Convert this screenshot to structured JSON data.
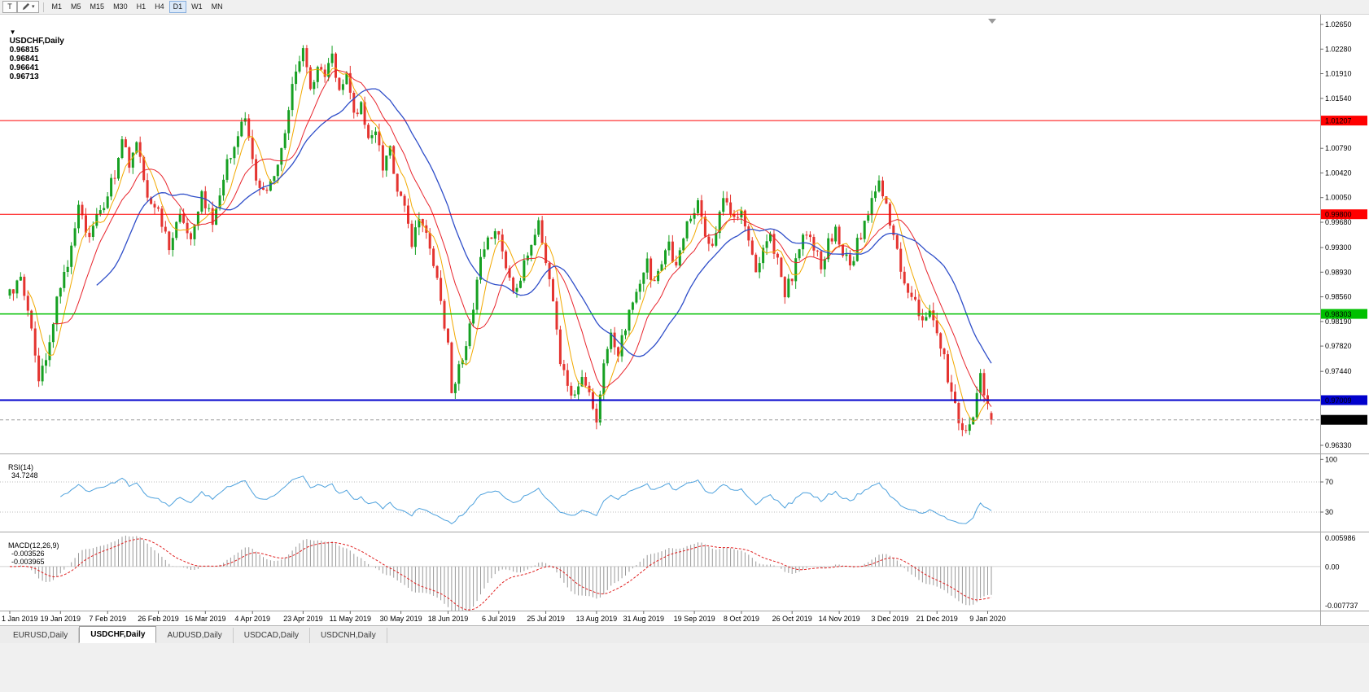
{
  "toolbar": {
    "tool_button": "T",
    "draw_caret": "▾",
    "timeframes": [
      "M1",
      "M5",
      "M15",
      "M30",
      "H1",
      "H4",
      "D1",
      "W1",
      "MN"
    ],
    "active_timeframe": "D1"
  },
  "main_chart": {
    "header": {
      "menu_marker": "▼",
      "symbol": "USDCHF,Daily",
      "open": "0.96815",
      "high": "0.96841",
      "low": "0.96641",
      "close": "0.96713"
    },
    "price_axis_labels": [
      "1.02650",
      "1.02280",
      "1.01910",
      "1.01540",
      "1.00790",
      "1.00420",
      "1.00050",
      "0.99680",
      "0.99300",
      "0.98930",
      "0.98560",
      "0.98190",
      "0.97820",
      "0.97440",
      "0.96330"
    ],
    "hlines": [
      {
        "price": 1.01207,
        "label": "1.01207",
        "color": "#FF0000",
        "width": 1
      },
      {
        "price": 0.998,
        "label": "0.99800",
        "color": "#FF0000",
        "width": 1
      },
      {
        "price": 0.98303,
        "label": "0.98303",
        "color": "#00C000",
        "width": 1.5
      },
      {
        "price": 0.97009,
        "label": "0.97009",
        "color": "#0000CC",
        "width": 2
      }
    ],
    "current_price": {
      "value": 0.96713,
      "label": "0.96713",
      "badge_bg": "#000000",
      "badge_fg": "#FFFFFF"
    }
  },
  "rsi_panel": {
    "header_label": "RSI(14)",
    "header_value": "34.7248",
    "axis_labels": [
      "100",
      "70",
      "30"
    ],
    "axis_values": [
      100,
      70,
      30
    ],
    "level_lines": [
      70,
      30
    ],
    "line_color": "#4DA1DD"
  },
  "macd_panel": {
    "header_label": "MACD(12,26,9)",
    "header_value": "-0.003526",
    "header_signal": "-0.003965",
    "axis_labels": [
      "0.005986",
      "0.00",
      "-0.007737"
    ],
    "axis_max": 0.005986,
    "axis_min": -0.007737,
    "hist_color": "#999999",
    "signal_color": "#E02020"
  },
  "date_axis": {
    "labels": [
      "1 Jan 2019",
      "19 Jan 2019",
      "7 Feb 2019",
      "26 Feb 2019",
      "16 Mar 2019",
      "4 Apr 2019",
      "23 Apr 2019",
      "11 May 2019",
      "30 May 2019",
      "18 Jun 2019",
      "6 Jul 2019",
      "25 Jul 2019",
      "13 Aug 2019",
      "31 Aug 2019",
      "19 Sep 2019",
      "8 Oct 2019",
      "26 Oct 2019",
      "14 Nov 2019",
      "3 Dec 2019",
      "21 Dec 2019",
      "9 Jan 2020"
    ],
    "indices": [
      0,
      14,
      27,
      41,
      54,
      67,
      81,
      94,
      108,
      121,
      135,
      148,
      162,
      175,
      189,
      202,
      216,
      229,
      243,
      256,
      270
    ]
  },
  "tabs": [
    {
      "label": "EURUSD,Daily",
      "active": false
    },
    {
      "label": "USDCHF,Daily",
      "active": true
    },
    {
      "label": "AUDUSD,Daily",
      "active": false
    },
    {
      "label": "USDCAD,Daily",
      "active": false
    },
    {
      "label": "USDCNH,Daily",
      "active": false
    }
  ],
  "chart_data": {
    "type": "candlestick",
    "symbol": "USDCHF",
    "timeframe": "Daily",
    "x_range": [
      "1 Jan 2019",
      "9 Jan 2020"
    ],
    "price_range": [
      0.9622,
      1.02748
    ],
    "num_candles": 272,
    "ohlc_current": {
      "open": 0.96815,
      "high": 0.96841,
      "low": 0.96641,
      "close": 0.96713
    },
    "horizontal_levels": [
      1.01207,
      0.998,
      0.98303,
      0.97009
    ],
    "up_color": "#16A022",
    "down_color": "#E43430",
    "moving_averages": [
      {
        "period": 6,
        "color": "#F2A900",
        "name": "fast-ma"
      },
      {
        "period": 13,
        "color": "#E8242C",
        "name": "mid-ma"
      },
      {
        "period": 25,
        "color": "#2F4EC9",
        "name": "slow-ma"
      }
    ],
    "indicators": {
      "rsi": {
        "period": 14,
        "current": 34.7248
      },
      "macd": {
        "fast": 12,
        "slow": 26,
        "signal": 9,
        "current": -0.003526,
        "signal_current": -0.003965
      }
    },
    "price_anchors": [
      [
        0,
        0.9858
      ],
      [
        3,
        0.9895
      ],
      [
        6,
        0.98
      ],
      [
        8,
        0.9725
      ],
      [
        10,
        0.977
      ],
      [
        13,
        0.985
      ],
      [
        16,
        0.9905
      ],
      [
        19,
        0.9985
      ],
      [
        22,
        0.995
      ],
      [
        26,
        0.9995
      ],
      [
        29,
        1.004
      ],
      [
        31,
        1.0095
      ],
      [
        33,
        1.005
      ],
      [
        35,
        1.0085
      ],
      [
        38,
        1.0
      ],
      [
        41,
        0.999
      ],
      [
        44,
        0.9928
      ],
      [
        47,
        0.9975
      ],
      [
        50,
        0.995
      ],
      [
        53,
        1.001
      ],
      [
        56,
        0.9965
      ],
      [
        59,
        1.004
      ],
      [
        62,
        1.009
      ],
      [
        65,
        1.0125
      ],
      [
        67,
        1.006
      ],
      [
        69,
        1.001
      ],
      [
        71,
        1.0025
      ],
      [
        73,
        1.004
      ],
      [
        75,
        1.008
      ],
      [
        77,
        1.014
      ],
      [
        79,
        1.0195
      ],
      [
        81,
        1.0222
      ],
      [
        83,
        1.017
      ],
      [
        85,
        1.0205
      ],
      [
        87,
        1.018
      ],
      [
        89,
        1.0215
      ],
      [
        91,
        1.016
      ],
      [
        93,
        1.019
      ],
      [
        95,
        1.013
      ],
      [
        97,
        1.015
      ],
      [
        99,
        1.009
      ],
      [
        101,
        1.011
      ],
      [
        103,
        1.005
      ],
      [
        105,
        1.0075
      ],
      [
        107,
        1.002
      ],
      [
        109,
        0.9985
      ],
      [
        111,
        0.994
      ],
      [
        113,
        0.9975
      ],
      [
        115,
        0.9945
      ],
      [
        117,
        0.9905
      ],
      [
        119,
        0.9855
      ],
      [
        121,
        0.978
      ],
      [
        122,
        0.9707
      ],
      [
        124,
        0.9745
      ],
      [
        126,
        0.979
      ],
      [
        128,
        0.9845
      ],
      [
        130,
        0.991
      ],
      [
        132,
        0.994
      ],
      [
        134,
        0.9955
      ],
      [
        136,
        0.9925
      ],
      [
        138,
        0.9885
      ],
      [
        140,
        0.986
      ],
      [
        142,
        0.9905
      ],
      [
        144,
        0.9935
      ],
      [
        146,
        0.9965
      ],
      [
        148,
        0.9915
      ],
      [
        150,
        0.9855
      ],
      [
        152,
        0.9765
      ],
      [
        154,
        0.973
      ],
      [
        156,
        0.9705
      ],
      [
        158,
        0.9745
      ],
      [
        160,
        0.9715
      ],
      [
        162,
        0.9672
      ],
      [
        164,
        0.976
      ],
      [
        166,
        0.9795
      ],
      [
        168,
        0.9775
      ],
      [
        170,
        0.9815
      ],
      [
        172,
        0.9845
      ],
      [
        174,
        0.9875
      ],
      [
        176,
        0.9905
      ],
      [
        178,
        0.9875
      ],
      [
        180,
        0.9905
      ],
      [
        182,
        0.9935
      ],
      [
        184,
        0.9895
      ],
      [
        186,
        0.9945
      ],
      [
        188,
        0.9975
      ],
      [
        190,
        0.9995
      ],
      [
        192,
        0.9955
      ],
      [
        194,
        0.9925
      ],
      [
        196,
        0.999
      ],
      [
        198,
        1.0005
      ],
      [
        200,
        0.9975
      ],
      [
        202,
        0.9995
      ],
      [
        204,
        0.9935
      ],
      [
        206,
        0.9895
      ],
      [
        208,
        0.9925
      ],
      [
        210,
        0.9955
      ],
      [
        212,
        0.9905
      ],
      [
        214,
        0.9865
      ],
      [
        216,
        0.9885
      ],
      [
        218,
        0.9925
      ],
      [
        220,
        0.9955
      ],
      [
        222,
        0.9935
      ],
      [
        224,
        0.9905
      ],
      [
        226,
        0.9935
      ],
      [
        228,
        0.9955
      ],
      [
        230,
        0.9925
      ],
      [
        232,
        0.9895
      ],
      [
        234,
        0.9935
      ],
      [
        236,
        0.9965
      ],
      [
        238,
        1.0005
      ],
      [
        240,
        1.0022
      ],
      [
        242,
        0.9992
      ],
      [
        244,
        0.9952
      ],
      [
        246,
        0.9895
      ],
      [
        248,
        0.9865
      ],
      [
        250,
        0.9845
      ],
      [
        252,
        0.9825
      ],
      [
        254,
        0.9845
      ],
      [
        256,
        0.98
      ],
      [
        258,
        0.9765
      ],
      [
        260,
        0.9705
      ],
      [
        262,
        0.9672
      ],
      [
        264,
        0.9648
      ],
      [
        266,
        0.9682
      ],
      [
        268,
        0.9732
      ],
      [
        270,
        0.97
      ],
      [
        271,
        0.96713
      ]
    ]
  }
}
